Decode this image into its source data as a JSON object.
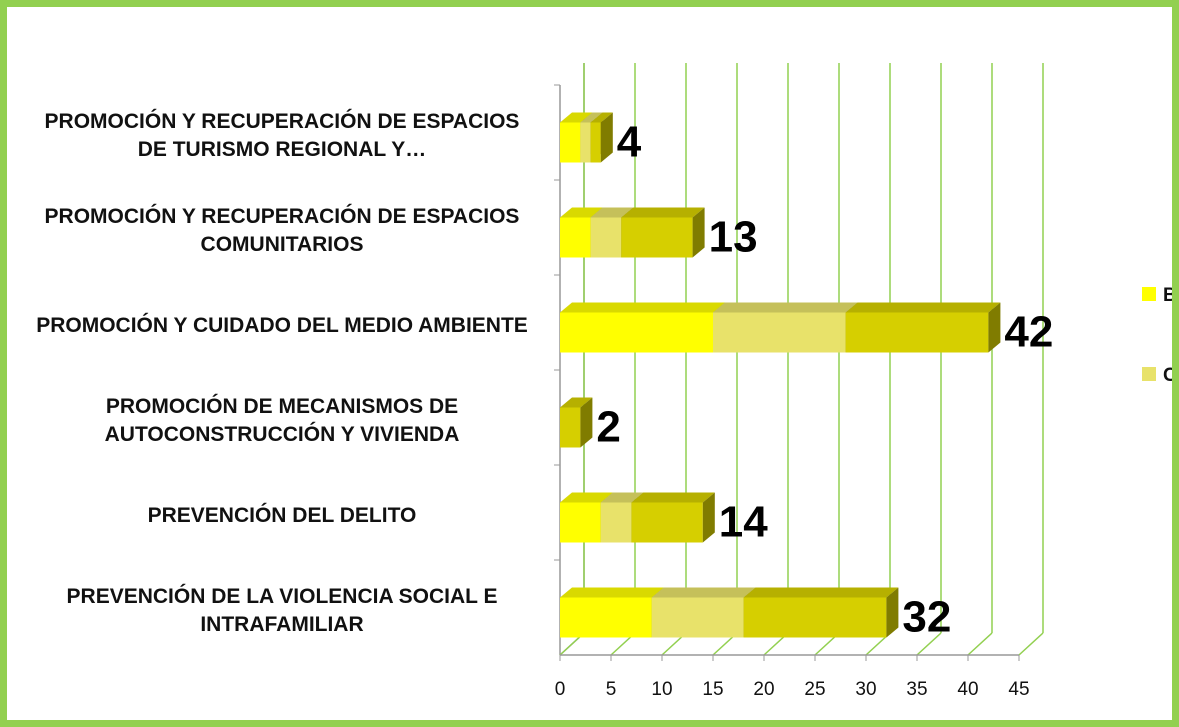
{
  "chart_data": {
    "type": "bar3d_stacked_horizontal",
    "categories": [
      "PROMOCIÓN Y RECUPERACIÓN DE ESPACIOS DE TURISMO REGIONAL Y…",
      "PROMOCIÓN Y RECUPERACIÓN DE ESPACIOS COMUNITARIOS",
      "PROMOCIÓN Y CUIDADO DEL MEDIO AMBIENTE",
      "PROMOCIÓN DE MECANISMOS DE AUTOCONSTRUCCIÓN Y VIVIENDA",
      "PREVENCIÓN DEL DELITO",
      "PREVENCIÓN DE LA VIOLENCIA SOCIAL E INTRAFAMILIAR"
    ],
    "series": [
      {
        "name": "B",
        "color": "#ffff00",
        "values": [
          2,
          3,
          15,
          0,
          4,
          9
        ]
      },
      {
        "name": "C",
        "color": "#e8e26a",
        "values": [
          1,
          3,
          13,
          0,
          3,
          9
        ]
      },
      {
        "color": "#d6cf00",
        "values": [
          1,
          7,
          14,
          2,
          7,
          14
        ]
      }
    ],
    "total_labels": [
      4,
      13,
      42,
      2,
      14,
      32
    ],
    "xlim": [
      0,
      45
    ],
    "xticks": [
      0,
      5,
      10,
      15,
      20,
      25,
      30,
      35,
      40,
      45
    ],
    "grid": true
  }
}
